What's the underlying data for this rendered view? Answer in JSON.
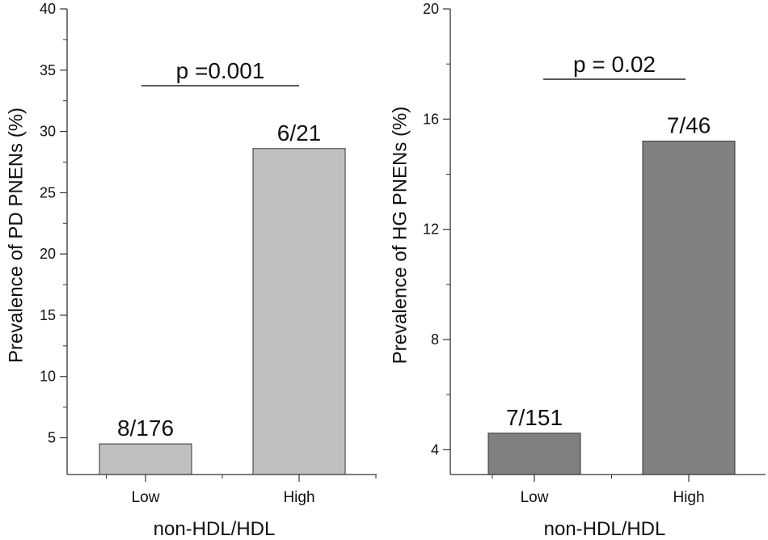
{
  "chart_data": [
    {
      "type": "bar",
      "categories": [
        "Low",
        "High"
      ],
      "values": [
        4.5,
        28.6
      ],
      "bar_labels": [
        "8/176",
        "6/21"
      ],
      "bar_color": "#c0c0c0",
      "ylabel": "Prevalence of PD PNENs (%)",
      "xlabel": "non-HDL/HDL",
      "ylim": [
        2,
        40
      ],
      "yticks": [
        5,
        10,
        15,
        20,
        25,
        30,
        35,
        40
      ],
      "annotation": "p =0.001"
    },
    {
      "type": "bar",
      "categories": [
        "Low",
        "High"
      ],
      "values": [
        4.6,
        15.2
      ],
      "bar_labels": [
        "7/151",
        "7/46"
      ],
      "bar_color": "#808080",
      "ylabel": "Prevalence of HG PNENs (%)",
      "xlabel": "non-HDL/HDL",
      "ylim": [
        3.1,
        20
      ],
      "yticks": [
        4,
        8,
        12,
        16,
        20
      ],
      "annotation": "p = 0.02"
    }
  ]
}
